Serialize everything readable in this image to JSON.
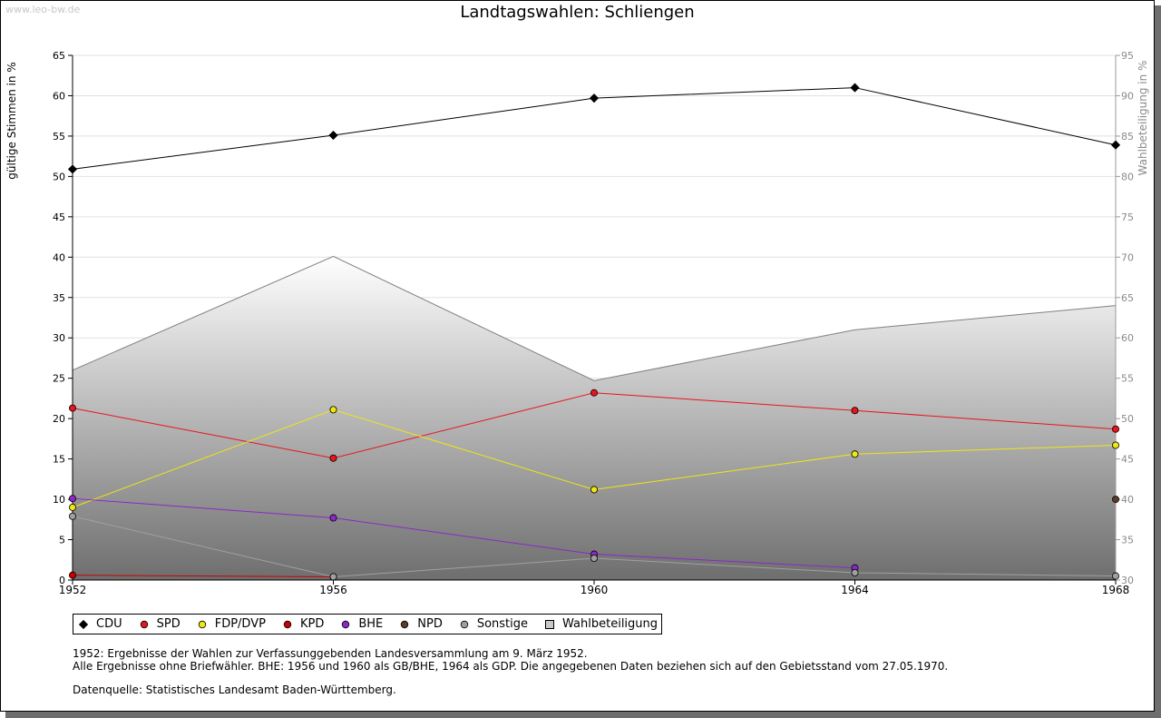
{
  "watermark": "www.leo-bw.de",
  "title": "Landtagswahlen: Schliengen",
  "chart_data": {
    "type": "line",
    "title": "Landtagswahlen: Schliengen",
    "xlabel": "",
    "ylabel": "gültige Stimmen in %",
    "y2label": "Wahlbeteiligung in %",
    "x": [
      "1952",
      "1956",
      "1960",
      "1964",
      "1968"
    ],
    "ylim": [
      0,
      65
    ],
    "yticks": [
      0,
      5,
      10,
      15,
      20,
      25,
      30,
      35,
      40,
      45,
      50,
      55,
      60,
      65
    ],
    "y2lim": [
      30,
      95
    ],
    "y2ticks": [
      30,
      35,
      40,
      45,
      50,
      55,
      60,
      65,
      70,
      75,
      80,
      85,
      90,
      95
    ],
    "grid": true,
    "legend_position": "bottom",
    "series": [
      {
        "name": "CDU",
        "color": "#000000",
        "values": [
          50.9,
          55.1,
          59.7,
          61.0,
          53.9
        ]
      },
      {
        "name": "SPD",
        "color": "#e8141e",
        "values": [
          21.3,
          15.1,
          23.2,
          21.0,
          18.7
        ]
      },
      {
        "name": "FDP/DVP",
        "color": "#f0e614",
        "values": [
          9.0,
          21.1,
          11.2,
          15.6,
          16.7
        ]
      },
      {
        "name": "KPD",
        "color": "#c80000",
        "values": [
          0.6,
          0.4,
          null,
          null,
          null
        ]
      },
      {
        "name": "BHE",
        "color": "#8c28c8",
        "values": [
          10.1,
          7.7,
          3.2,
          1.5,
          null
        ]
      },
      {
        "name": "NPD",
        "color": "#5a3c28",
        "values": [
          null,
          null,
          null,
          null,
          10.0
        ]
      },
      {
        "name": "Sonstige",
        "color": "#a0a0a0",
        "values": [
          7.9,
          0.4,
          2.7,
          0.9,
          0.5
        ]
      },
      {
        "name": "Wahlbeteiligung",
        "color": "#b4b4b4",
        "axis": "right",
        "type": "area",
        "values": [
          56.0,
          70.1,
          54.7,
          61.0,
          64.0
        ]
      }
    ]
  },
  "notes": {
    "line1": "1952: Ergebnisse der Wahlen zur Verfassunggebenden Landesversammlung am 9. März 1952.",
    "line2": "Alle Ergebnisse ohne Briefwähler. BHE: 1956 und 1960 als GB/BHE, 1964 als GDP. Die angegebenen Daten beziehen sich auf den Gebietsstand vom 27.05.1970.",
    "source": "Datenquelle: Statistisches Landesamt Baden-Württemberg."
  }
}
